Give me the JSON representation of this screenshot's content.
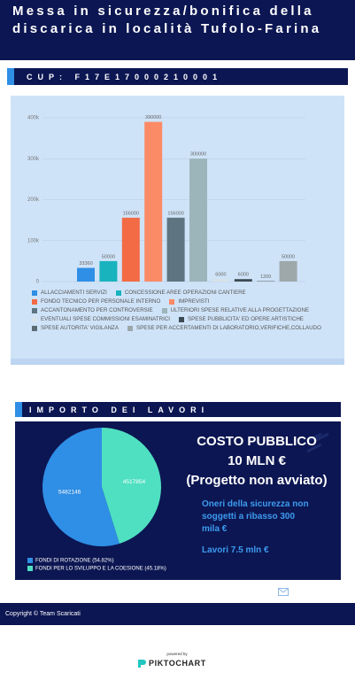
{
  "header": {
    "title": "Messa in sicurezza/bonifica della discarica in località Tufolo-Farina"
  },
  "cup": {
    "label": "CUP: F17E17000210001"
  },
  "section_title": "IMPORTO DEI LAVORI",
  "cost_box": {
    "title": "COSTO PUBBLICO",
    "amount": "10 MLN €",
    "status": "(Progetto non avviato)",
    "note": "Oneri della sicurezza non soggetti a ribasso 300 mila €",
    "works": "Lavori 7.5 mln €"
  },
  "footer": {
    "copyright": "Copyright © Team Scaricati"
  },
  "branding": {
    "powered_by": "powered by",
    "name": "PIKTOCHART"
  },
  "chart_data": [
    {
      "type": "bar",
      "categories": [
        "ALLACCIAMENTI SERVIZI",
        "CONCESSIONE AREE OPERAZIONI CANTIERE",
        "FONDO TECNICO PER PERSONALE INTERNO",
        "IMPREVISTI",
        "ACCANTONAMENTO PER CONTROVERSIE",
        "ULTERIORI SPESE RELATIVE ALLA PROGETTAZIONE",
        "EVENTUALI SPESE COMMISSIONI ESAMINATRICI",
        "SPESE PUBBLICITA' ED OPERE ARTISTICHE",
        "SPESE AUTORITA' VIGILANZA",
        "SPESE PER ACCERTAMENTI DI LABORATORIO,VERIFICHE,COLLAUDO"
      ],
      "values": [
        33360,
        50000,
        156000,
        390000,
        156000,
        300000,
        6000,
        6000,
        1200,
        50000
      ],
      "colors": [
        "#2f8ee5",
        "#19b3bd",
        "#f26b45",
        "#fb8a66",
        "#5e7480",
        "#9cb5ba",
        "#d7e3ea",
        "#3c4a52",
        "#5a6b73",
        "#9ea7aa"
      ],
      "ylim": [
        0,
        400000
      ],
      "yticks": [
        0,
        {
          "value": 100000,
          "label": "100k"
        },
        {
          "value": 200000,
          "label": "200k"
        },
        {
          "value": 300000,
          "label": "300k"
        },
        {
          "value": 400000,
          "label": "400k"
        }
      ],
      "grid": true
    },
    {
      "type": "pie",
      "categories": [
        "FONDI DI ROTAZIONE (54.82%)",
        "FONDI PER LO SVILUPPO E LA COESIONE (45.18%)"
      ],
      "values": [
        5482146,
        4517854
      ],
      "colors": [
        "#2f8ee5",
        "#4fe0c1"
      ]
    }
  ]
}
